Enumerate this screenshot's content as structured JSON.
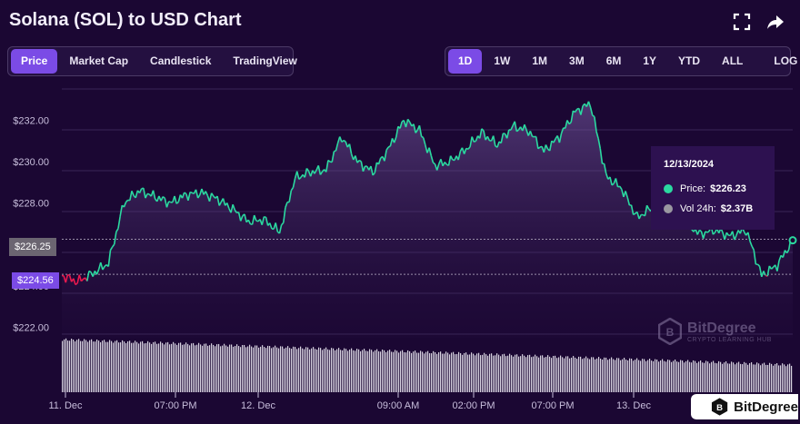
{
  "header": {
    "title": "Solana (SOL) to USD Chart",
    "icons": [
      "fullscreen-icon",
      "share-icon"
    ]
  },
  "chart_tabs": {
    "items": [
      "Price",
      "Market Cap",
      "Candlestick",
      "TradingView"
    ],
    "active": "Price"
  },
  "range_tabs": {
    "items": [
      "1D",
      "1W",
      "1M",
      "3M",
      "6M",
      "1Y",
      "YTD",
      "ALL"
    ],
    "active": "1D",
    "log_label": "LOG"
  },
  "tooltip": {
    "date": "12/13/2024",
    "price_label": "Price:",
    "price_value": "$226.23",
    "vol_label": "Vol 24h:",
    "vol_value": "$2.37B"
  },
  "flags": {
    "current": "$226.25",
    "low": "$224.56"
  },
  "watermark": {
    "name": "BitDegree",
    "tagline": "CRYPTO LEARNING HUB"
  },
  "badge": {
    "name": "BitDegree"
  },
  "colors": {
    "up_line": "#2bd9a0",
    "down_line": "#e8194f",
    "accent": "#7b4be6",
    "volume": "#d8d3e0"
  },
  "chart_data": {
    "type": "line",
    "title": "Solana (SOL) to USD Chart",
    "ylim": [
      221.5,
      233.5
    ],
    "yticks": [
      "$222.00",
      "$224.00",
      "$228.00",
      "$230.00",
      "$232.00"
    ],
    "xticks": [
      "11. Dec",
      "07:00 PM",
      "12. Dec",
      "09:00 AM",
      "02:00 PM",
      "07:00 PM",
      "13. Dec",
      "12/13/2024"
    ],
    "x": [
      "11. Dec 12:00",
      "11. Dec 13:00",
      "11. Dec 14:00",
      "11. Dec 15:00",
      "11. Dec 16:00",
      "11. Dec 17:00",
      "11. Dec 18:00",
      "11. Dec 19:00",
      "11. Dec 20:00",
      "11. Dec 21:00",
      "11. Dec 22:00",
      "11. Dec 23:00",
      "12. Dec 00:00",
      "12. Dec 01:00",
      "12. Dec 02:00",
      "12. Dec 03:00",
      "12. Dec 04:00",
      "12. Dec 05:00",
      "12. Dec 06:00",
      "12. Dec 07:00",
      "12. Dec 08:00",
      "12. Dec 09:00",
      "12. Dec 10:00",
      "12. Dec 11:00",
      "12. Dec 12:00",
      "12. Dec 13:00",
      "12. Dec 14:00",
      "12. Dec 15:00",
      "12. Dec 16:00",
      "12. Dec 17:00",
      "12. Dec 18:00",
      "12. Dec 19:00",
      "12. Dec 20:00",
      "12. Dec 21:00",
      "12. Dec 22:00",
      "12. Dec 23:00",
      "13. Dec 00:00",
      "13. Dec 01:00",
      "13. Dec 02:00",
      "13. Dec 03:00",
      "13. Dec 04:00",
      "13. Dec 05:00",
      "13. Dec 06:00",
      "13. Dec 07:00",
      "13. Dec 08:00",
      "13. Dec 09:00",
      "13. Dec 10:00",
      "13. Dec 11:00"
    ],
    "values": [
      224.5,
      224.2,
      224.6,
      225.1,
      228.0,
      228.6,
      228.3,
      228.0,
      228.4,
      228.5,
      228.2,
      227.7,
      227.1,
      227.2,
      226.6,
      229.2,
      229.5,
      229.6,
      231.2,
      230.0,
      229.5,
      230.6,
      232.0,
      231.5,
      229.8,
      230.0,
      230.6,
      231.4,
      230.8,
      231.7,
      231.5,
      230.5,
      231.2,
      232.4,
      232.8,
      229.3,
      228.7,
      227.3,
      227.8,
      227.5,
      227.2,
      226.5,
      226.7,
      226.4,
      226.7,
      224.5,
      225.0,
      226.2
    ],
    "series": [
      {
        "name": "Price",
        "color": "#2bd9a0"
      }
    ],
    "grid": true,
    "legend": "none"
  }
}
